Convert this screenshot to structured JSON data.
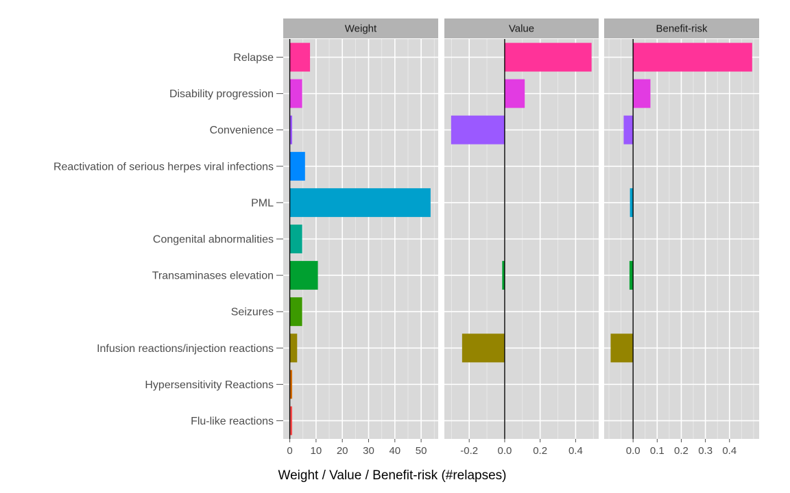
{
  "chart_data": {
    "type": "bar",
    "orientation": "horizontal",
    "facet_layout": "three panels side by side with shared y axis",
    "xlabel": "Weight / Value / Benefit-risk (#relapses)",
    "ylabel": "",
    "grid": true,
    "legend": "none",
    "categories": [
      "Relapse",
      "Disability progression",
      "Convenience",
      "Reactivation of serious herpes viral infections",
      "PML",
      "Congenital abnormalities",
      "Transaminases elevation",
      "Seizures",
      "Infusion reactions/injection reactions",
      "Hypersensitivity Reactions",
      "Flu-like reactions"
    ],
    "colors": [
      "#FF3399",
      "#E23BE2",
      "#9B59FF",
      "#0088FF",
      "#00A0CC",
      "#00A88E",
      "#00A030",
      "#3C9A00",
      "#948400",
      "#D06A00",
      "#F54B4B"
    ],
    "panels": [
      {
        "name": "Weight",
        "xlim": [
          -2.5,
          56.5
        ],
        "ticks": [
          0,
          10,
          20,
          30,
          40,
          50
        ],
        "tick_labels": [
          "0",
          "10",
          "20",
          "30",
          "40",
          "50"
        ],
        "minor_ticks": [
          5,
          15,
          25,
          35,
          45,
          55
        ],
        "zero_line": true,
        "values": [
          7.7,
          4.7,
          0.9,
          5.8,
          53.6,
          4.7,
          10.7,
          4.7,
          2.8,
          0.9,
          0.9
        ]
      },
      {
        "name": "Value",
        "xlim": [
          -0.34,
          0.53
        ],
        "ticks": [
          -0.2,
          0.0,
          0.2,
          0.4
        ],
        "tick_labels": [
          "-0.2",
          "0.0",
          "0.2",
          "0.4"
        ],
        "minor_ticks": [
          -0.3,
          -0.1,
          0.1,
          0.3,
          0.5
        ],
        "zero_line": true,
        "values": [
          0.49,
          0.113,
          -0.302,
          0,
          0,
          0,
          -0.014,
          0,
          -0.24,
          0,
          0
        ]
      },
      {
        "name": "Benefit-risk",
        "xlim": [
          -0.12,
          0.523
        ],
        "ticks": [
          0.0,
          0.1,
          0.2,
          0.3,
          0.4
        ],
        "tick_labels": [
          "0.0",
          "0.1",
          "0.2",
          "0.3",
          "0.4"
        ],
        "minor_ticks": [
          -0.1,
          -0.05,
          0.05,
          0.15,
          0.25,
          0.35,
          0.45,
          0.5
        ],
        "zero_line": true,
        "values": [
          0.494,
          0.072,
          -0.039,
          0,
          -0.013,
          0,
          -0.015,
          0,
          -0.093,
          0,
          0
        ]
      }
    ]
  }
}
